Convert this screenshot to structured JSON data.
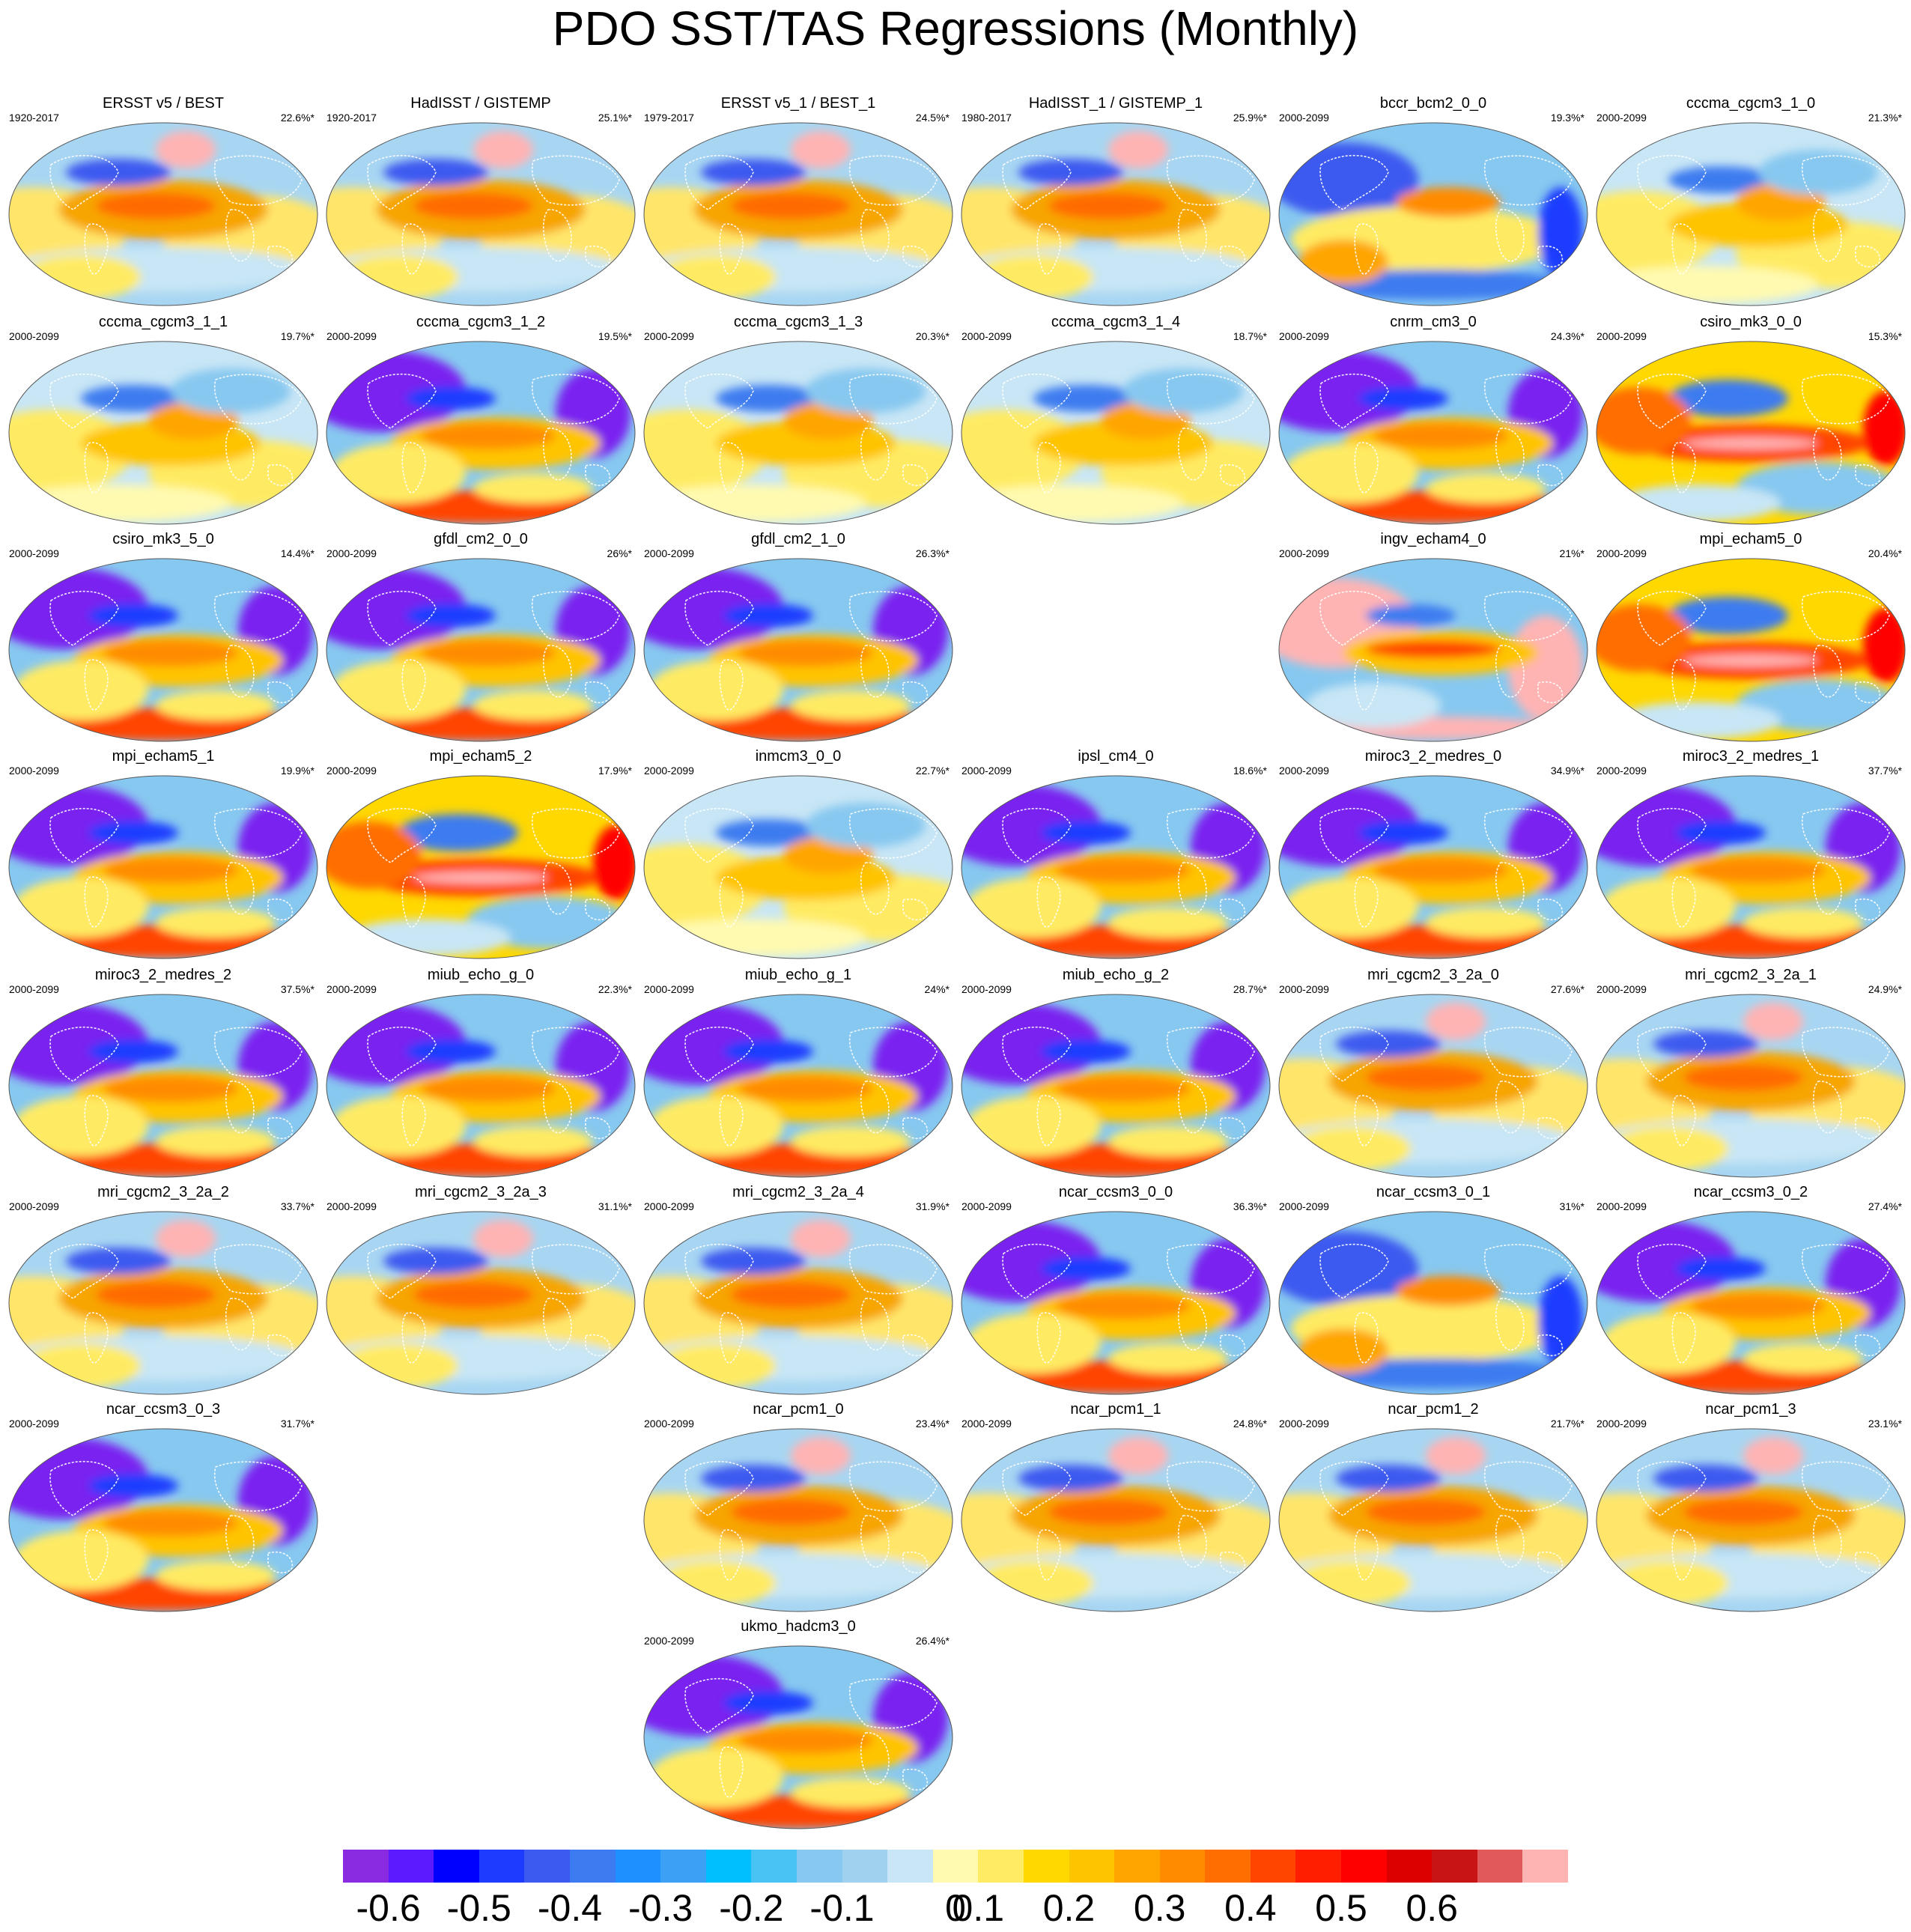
{
  "title": "PDO SST/TAS Regressions (Monthly)",
  "panels": [
    {
      "name": "ERSST v5 / BEST",
      "period": "1920-2017",
      "percent": "22.6%*",
      "style": "obs"
    },
    {
      "name": "HadISST / GISTEMP",
      "period": "1920-2017",
      "percent": "25.1%*",
      "style": "obs"
    },
    {
      "name": "ERSST v5_1 / BEST_1",
      "period": "1979-2017",
      "percent": "24.5%*",
      "style": "obs"
    },
    {
      "name": "HadISST_1 / GISTEMP_1",
      "period": "1980-2017",
      "percent": "25.9%*",
      "style": "obs"
    },
    {
      "name": "bccr_bcm2_0_0",
      "period": "2000-2099",
      "percent": "19.3%*",
      "style": "cool"
    },
    {
      "name": "cccma_cgcm3_1_0",
      "period": "2000-2099",
      "percent": "21.3%*",
      "style": "light"
    },
    {
      "name": "cccma_cgcm3_1_1",
      "period": "2000-2099",
      "percent": "19.7%*",
      "style": "light"
    },
    {
      "name": "cccma_cgcm3_1_2",
      "period": "2000-2099",
      "percent": "19.5%*",
      "style": "purple"
    },
    {
      "name": "cccma_cgcm3_1_3",
      "period": "2000-2099",
      "percent": "20.3%*",
      "style": "light"
    },
    {
      "name": "cccma_cgcm3_1_4",
      "period": "2000-2099",
      "percent": "18.7%*",
      "style": "light"
    },
    {
      "name": "cnrm_cm3_0",
      "period": "2000-2099",
      "percent": "24.3%*",
      "style": "purple"
    },
    {
      "name": "csiro_mk3_0_0",
      "period": "2000-2099",
      "percent": "15.3%*",
      "style": "warm"
    },
    {
      "name": "csiro_mk3_5_0",
      "period": "2000-2099",
      "percent": "14.4%*",
      "style": "purple"
    },
    {
      "name": "gfdl_cm2_0_0",
      "period": "2000-2099",
      "percent": "26%*",
      "style": "purple"
    },
    {
      "name": "gfdl_cm2_1_0",
      "period": "2000-2099",
      "percent": "26.3%*",
      "style": "purple"
    },
    {
      "name": "ingv_echam4_0",
      "period": "2000-2099",
      "percent": "21%*",
      "style": "pink"
    },
    {
      "name": "mpi_echam5_0",
      "period": "2000-2099",
      "percent": "20.4%*",
      "style": "warm"
    },
    {
      "name": "mpi_echam5_1",
      "period": "2000-2099",
      "percent": "19.9%*",
      "style": "purple"
    },
    {
      "name": "mpi_echam5_2",
      "period": "2000-2099",
      "percent": "17.9%*",
      "style": "warm"
    },
    {
      "name": "inmcm3_0_0",
      "period": "2000-2099",
      "percent": "22.7%*",
      "style": "light"
    },
    {
      "name": "ipsl_cm4_0",
      "period": "2000-2099",
      "percent": "18.6%*",
      "style": "purple"
    },
    {
      "name": "miroc3_2_medres_0",
      "period": "2000-2099",
      "percent": "34.9%*",
      "style": "purple"
    },
    {
      "name": "miroc3_2_medres_1",
      "period": "2000-2099",
      "percent": "37.7%*",
      "style": "purple"
    },
    {
      "name": "miroc3_2_medres_2",
      "period": "2000-2099",
      "percent": "37.5%*",
      "style": "purple"
    },
    {
      "name": "miub_echo_g_0",
      "period": "2000-2099",
      "percent": "22.3%*",
      "style": "purple"
    },
    {
      "name": "miub_echo_g_1",
      "period": "2000-2099",
      "percent": "24%*",
      "style": "purple"
    },
    {
      "name": "miub_echo_g_2",
      "period": "2000-2099",
      "percent": "28.7%*",
      "style": "purple"
    },
    {
      "name": "mri_cgcm2_3_2a_0",
      "period": "2000-2099",
      "percent": "27.6%*",
      "style": "obs"
    },
    {
      "name": "mri_cgcm2_3_2a_1",
      "period": "2000-2099",
      "percent": "24.9%*",
      "style": "obs"
    },
    {
      "name": "mri_cgcm2_3_2a_2",
      "period": "2000-2099",
      "percent": "33.7%*",
      "style": "obs"
    },
    {
      "name": "mri_cgcm2_3_2a_3",
      "period": "2000-2099",
      "percent": "31.1%*",
      "style": "obs"
    },
    {
      "name": "mri_cgcm2_3_2a_4",
      "period": "2000-2099",
      "percent": "31.9%*",
      "style": "obs"
    },
    {
      "name": "ncar_ccsm3_0_0",
      "period": "2000-2099",
      "percent": "36.3%*",
      "style": "purple"
    },
    {
      "name": "ncar_ccsm3_0_1",
      "period": "2000-2099",
      "percent": "31%*",
      "style": "cool"
    },
    {
      "name": "ncar_ccsm3_0_2",
      "period": "2000-2099",
      "percent": "27.4%*",
      "style": "purple"
    },
    {
      "name": "ncar_ccsm3_0_3",
      "period": "2000-2099",
      "percent": "31.7%*",
      "style": "purple"
    },
    {
      "name": "ncar_pcm1_0",
      "period": "2000-2099",
      "percent": "23.4%*",
      "style": "obs"
    },
    {
      "name": "ncar_pcm1_1",
      "period": "2000-2099",
      "percent": "24.8%*",
      "style": "obs"
    },
    {
      "name": "ncar_pcm1_2",
      "period": "2000-2099",
      "percent": "21.7%*",
      "style": "obs"
    },
    {
      "name": "ncar_pcm1_3",
      "period": "2000-2099",
      "percent": "23.1%*",
      "style": "obs"
    },
    {
      "name": "ukmo_hadcm3_0",
      "period": "2000-2099",
      "percent": "26.4%*",
      "style": "purple"
    }
  ],
  "colorbar": {
    "colors": [
      "#8a2be2",
      "#5a1cff",
      "#0000ff",
      "#1e3cff",
      "#3c5af0",
      "#3c7bf0",
      "#1e90ff",
      "#3ca0f5",
      "#00bfff",
      "#48c3f4",
      "#87c8f0",
      "#a0d2f0",
      "#c8e6f5",
      "#fffab0",
      "#ffeb64",
      "#ffd800",
      "#ffc400",
      "#ffa500",
      "#ff8c00",
      "#ff6e00",
      "#ff4500",
      "#ff1e00",
      "#ff0000",
      "#dc0000",
      "#c81414",
      "#e05a5a",
      "#ffb4b4"
    ],
    "labels": [
      "-0.6",
      "-0.5",
      "-0.4",
      "-0.3",
      "-0.2",
      "-0.1",
      "0",
      "0.1",
      "0.2",
      "0.3",
      "0.4",
      "0.5",
      "0.6"
    ],
    "label_values": [
      -0.6,
      -0.5,
      -0.4,
      -0.3,
      -0.2,
      -0.1,
      0,
      0.1,
      0.2,
      0.3,
      0.4,
      0.5,
      0.6
    ]
  }
}
